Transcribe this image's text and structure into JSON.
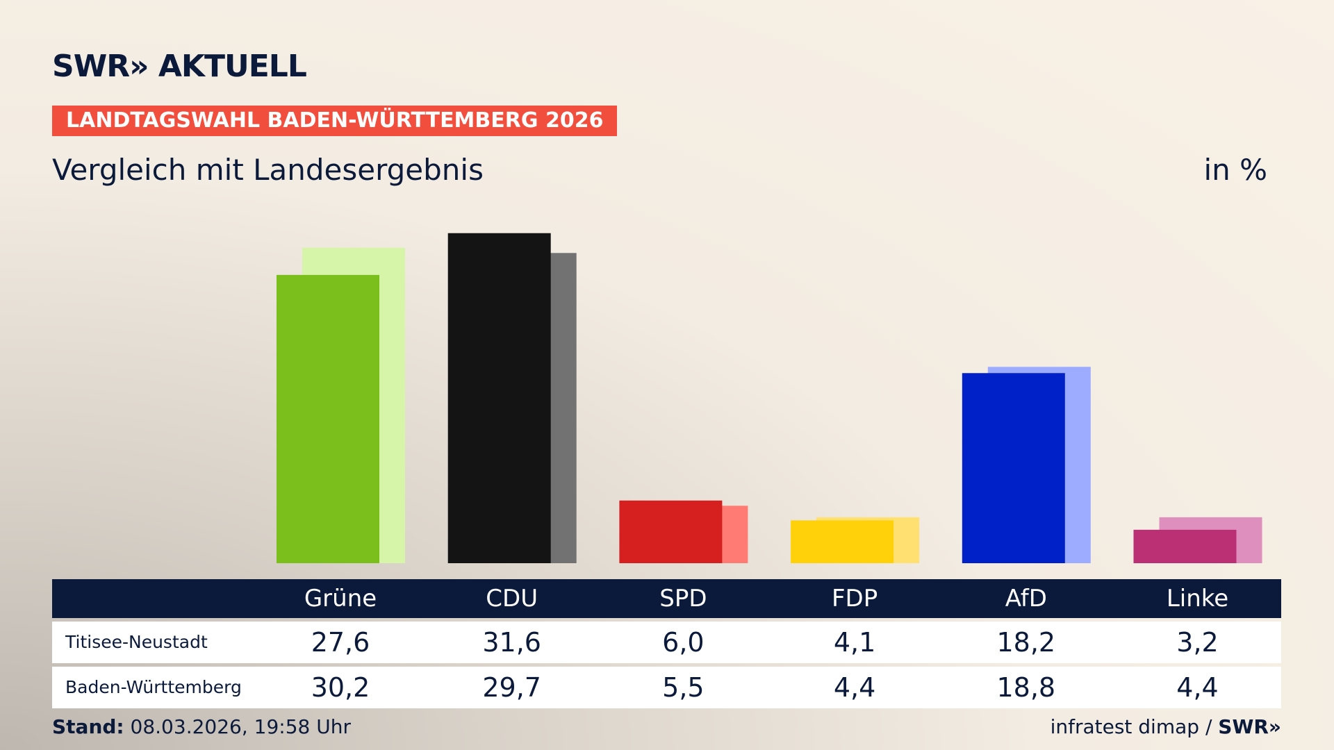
{
  "brand": {
    "logo": "SWR» AKTUELL",
    "footer_logo": "SWR»"
  },
  "banner": "LANDTAGSWAHL BADEN-WÜRTTEMBERG 2026",
  "subtitle": "Vergleich mit Landesergebnis",
  "unit": "in %",
  "footer": {
    "stand_label": "Stand:",
    "stand_value": "08.03.2026, 19:58 Uhr",
    "source": "infratest dimap /"
  },
  "chart_data": {
    "type": "bar",
    "categories": [
      "Grüne",
      "CDU",
      "SPD",
      "FDP",
      "AfD",
      "Linke"
    ],
    "series": [
      {
        "name": "Titisee-Neustadt",
        "values": [
          27.6,
          31.6,
          6.0,
          4.1,
          18.2,
          3.2
        ],
        "display": [
          "27,6",
          "31,6",
          "6,0",
          "4,1",
          "18,2",
          "3,2"
        ]
      },
      {
        "name": "Baden-Württemberg",
        "values": [
          30.2,
          29.7,
          5.5,
          4.4,
          18.8,
          4.4
        ],
        "display": [
          "30,2",
          "29,7",
          "5,5",
          "4,4",
          "18,8",
          "4,4"
        ]
      }
    ],
    "colors": {
      "front": [
        "#7abf1c",
        "#141414",
        "#d61f1f",
        "#ffd10a",
        "#0021c8",
        "#bb3074"
      ],
      "back": [
        "#d7f5a8",
        "#727272",
        "#ff7b73",
        "#ffe070",
        "#9eacff",
        "#de8fbd"
      ]
    }
  }
}
